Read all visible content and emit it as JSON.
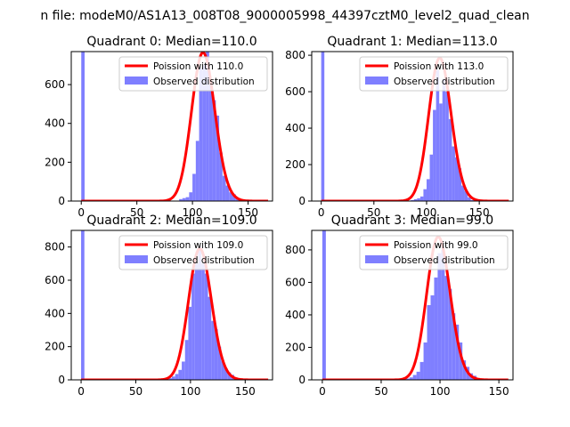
{
  "figure": {
    "suptitle": "n file: modeM0/AS1A13_008T08_9000005998_44397cztM0_level2_quad_clean"
  },
  "style": {
    "hist_color": "#7f7fff",
    "line_color": "#ff0000",
    "axis_color": "#000000",
    "background": "#ffffff"
  },
  "chart_data": [
    {
      "type": "bar",
      "title": "Quadrant 0: Median=110.0",
      "median": 110.0,
      "xlim": [
        -9,
        172
      ],
      "ylim": [
        0,
        770
      ],
      "xticks": [
        0,
        50,
        100,
        150
      ],
      "yticks": [
        0,
        200,
        400,
        600
      ],
      "legend_position": "top-right",
      "series": [
        {
          "name": "Poission with 110.0",
          "kind": "line",
          "mean": 110.0,
          "peak": 765
        },
        {
          "name": "Observed distribution",
          "kind": "histogram",
          "bins": [
            [
              0,
              780
            ],
            [
              85,
              2
            ],
            [
              88,
              10
            ],
            [
              91,
              15
            ],
            [
              94,
              20
            ],
            [
              97,
              45
            ],
            [
              100,
              140
            ],
            [
              103,
              310
            ],
            [
              106,
              690
            ],
            [
              109,
              700
            ],
            [
              112,
              770
            ],
            [
              115,
              600
            ],
            [
              118,
              520
            ],
            [
              121,
              440
            ],
            [
              124,
              250
            ],
            [
              127,
              130
            ],
            [
              130,
              80
            ],
            [
              133,
              45
            ],
            [
              136,
              35
            ],
            [
              139,
              10
            ],
            [
              142,
              5
            ]
          ]
        }
      ]
    },
    {
      "type": "bar",
      "title": "Quadrant 1: Median=113.0",
      "median": 113.0,
      "xlim": [
        -9,
        182
      ],
      "ylim": [
        0,
        820
      ],
      "xticks": [
        0,
        50,
        100,
        150
      ],
      "yticks": [
        0,
        200,
        400,
        600,
        800
      ],
      "legend_position": "top-right",
      "series": [
        {
          "name": "Poission with 113.0",
          "kind": "line",
          "mean": 113.0,
          "peak": 785
        },
        {
          "name": "Observed distribution",
          "kind": "histogram",
          "bins": [
            [
              0,
              820
            ],
            [
              79,
              2
            ],
            [
              85,
              5
            ],
            [
              88,
              10
            ],
            [
              91,
              15
            ],
            [
              94,
              25
            ],
            [
              97,
              65
            ],
            [
              100,
              120
            ],
            [
              103,
              255
            ],
            [
              106,
              500
            ],
            [
              109,
              720
            ],
            [
              112,
              535
            ],
            [
              115,
              670
            ],
            [
              118,
              600
            ],
            [
              121,
              450
            ],
            [
              124,
              300
            ],
            [
              127,
              240
            ],
            [
              130,
              180
            ],
            [
              133,
              85
            ],
            [
              136,
              55
            ],
            [
              139,
              20
            ],
            [
              142,
              5
            ]
          ]
        }
      ]
    },
    {
      "type": "bar",
      "title": "Quadrant 2: Median=109.0",
      "median": 109.0,
      "xlim": [
        -9,
        175
      ],
      "ylim": [
        0,
        900
      ],
      "xticks": [
        0,
        50,
        100,
        150
      ],
      "yticks": [
        0,
        200,
        400,
        600,
        800
      ],
      "legend_position": "top-right",
      "series": [
        {
          "name": "Poission with 109.0",
          "kind": "line",
          "mean": 109.0,
          "peak": 790
        },
        {
          "name": "Observed distribution",
          "kind": "histogram",
          "bins": [
            [
              0,
              900
            ],
            [
              74,
              2
            ],
            [
              80,
              10
            ],
            [
              83,
              20
            ],
            [
              86,
              35
            ],
            [
              89,
              60
            ],
            [
              92,
              110
            ],
            [
              95,
              240
            ],
            [
              98,
              440
            ],
            [
              101,
              640
            ],
            [
              104,
              700
            ],
            [
              107,
              805
            ],
            [
              110,
              700
            ],
            [
              113,
              640
            ],
            [
              116,
              500
            ],
            [
              119,
              355
            ],
            [
              122,
              305
            ],
            [
              125,
              200
            ],
            [
              128,
              115
            ],
            [
              131,
              70
            ],
            [
              134,
              45
            ],
            [
              137,
              30
            ],
            [
              140,
              15
            ],
            [
              143,
              8
            ],
            [
              146,
              4
            ]
          ]
        }
      ]
    },
    {
      "type": "bar",
      "title": "Quadrant 3: Median=99.0",
      "median": 99.0,
      "xlim": [
        -9,
        162
      ],
      "ylim": [
        0,
        920
      ],
      "xticks": [
        0,
        50,
        100,
        150
      ],
      "yticks": [
        0,
        200,
        400,
        600,
        800
      ],
      "legend_position": "top-right",
      "series": [
        {
          "name": "Poission with 99.0",
          "kind": "line",
          "mean": 99.0,
          "peak": 880
        },
        {
          "name": "Observed distribution",
          "kind": "histogram",
          "bins": [
            [
              0,
              920
            ],
            [
              65,
              2
            ],
            [
              71,
              8
            ],
            [
              74,
              15
            ],
            [
              77,
              30
            ],
            [
              80,
              50
            ],
            [
              83,
              110
            ],
            [
              86,
              230
            ],
            [
              89,
              460
            ],
            [
              92,
              520
            ],
            [
              95,
              630
            ],
            [
              98,
              780
            ],
            [
              101,
              800
            ],
            [
              104,
              640
            ],
            [
              107,
              560
            ],
            [
              110,
              410
            ],
            [
              113,
              340
            ],
            [
              116,
              230
            ],
            [
              119,
              120
            ],
            [
              122,
              80
            ],
            [
              125,
              40
            ],
            [
              128,
              25
            ],
            [
              131,
              10
            ],
            [
              134,
              5
            ]
          ]
        }
      ]
    }
  ]
}
